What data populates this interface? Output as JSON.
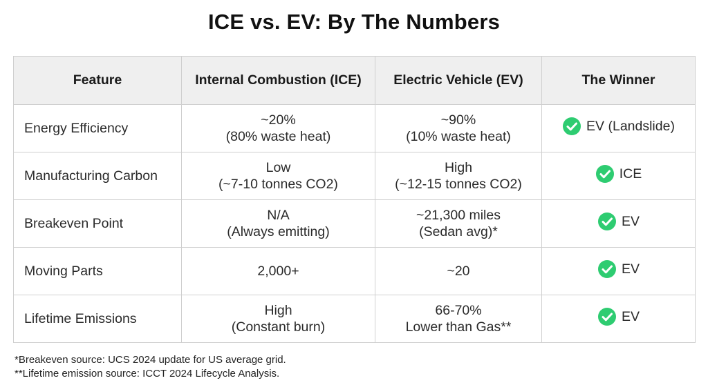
{
  "title": "ICE vs. EV: By The Numbers",
  "table": {
    "headers": [
      "Feature",
      "Internal Combustion (ICE)",
      "Electric Vehicle (EV)",
      "The Winner"
    ],
    "rows": [
      {
        "feature": "Energy Efficiency",
        "ice": [
          "~20%",
          "(80% waste heat)"
        ],
        "ev": [
          "~90%",
          "(10% waste heat)"
        ],
        "winner": "EV (Landslide)"
      },
      {
        "feature": "Manufacturing Carbon",
        "ice": [
          "Low",
          "(~7-10 tonnes CO2)"
        ],
        "ev": [
          "High",
          "(~12-15 tonnes CO2)"
        ],
        "winner": "ICE"
      },
      {
        "feature": "Breakeven Point",
        "ice": [
          "N/A",
          "(Always emitting)"
        ],
        "ev": [
          "~21,300 miles",
          "(Sedan avg)*"
        ],
        "winner": "EV"
      },
      {
        "feature": "Moving Parts",
        "ice": [
          "2,000+",
          ""
        ],
        "ev": [
          "~20",
          ""
        ],
        "winner": "EV"
      },
      {
        "feature": "Lifetime Emissions",
        "ice": [
          "High",
          "(Constant burn)"
        ],
        "ev": [
          "66-70%",
          "Lower than Gas**"
        ],
        "winner": "EV"
      }
    ]
  },
  "footnotes": [
    "*Breakeven source: UCS 2024 update for US average grid.",
    "**Lifetime emission source: ICCT 2024 Lifecycle Analysis."
  ],
  "colors": {
    "check": "#2ecc71",
    "header_bg": "#efefef",
    "border": "#cfcfcf"
  },
  "icons": {
    "winner": "check-circle-icon"
  }
}
